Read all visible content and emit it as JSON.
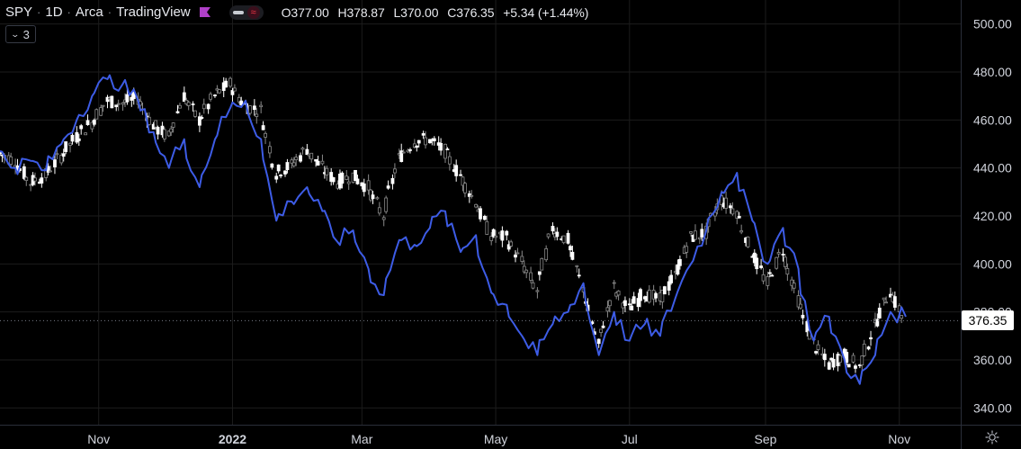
{
  "legend": {
    "symbol": "SPY",
    "interval": "1D",
    "exchange": "Arca",
    "source": "TradingView",
    "open": "O377.00",
    "high": "H378.87",
    "low": "L370.00",
    "close": "C376.35",
    "change": "+5.34 (+1.44%)",
    "flag_color": "#b040c8",
    "flag_icon": "flag-icon"
  },
  "indicators_button": {
    "count": "3",
    "icon": "chevron-down-icon"
  },
  "last_price": "376.35",
  "colors": {
    "background": "#000000",
    "grid": "#1c1c1c",
    "candle_up": "#ffffff",
    "candle_down": "#8a8a8a",
    "compare_line": "#3d5ce6",
    "price_tag_bg": "#ffffff",
    "axis_text": "#d1d4dc"
  },
  "chart_data": {
    "type": "line",
    "ylim": [
      333,
      510
    ],
    "y_ticks": [
      "340.00",
      "360.00",
      "380.00",
      "400.00",
      "420.00",
      "440.00",
      "460.00",
      "480.00",
      "500.00"
    ],
    "y_tick_values": [
      340,
      360,
      380,
      400,
      420,
      440,
      460,
      480,
      500
    ],
    "x_ticks": [
      "Nov",
      "2022",
      "Mar",
      "May",
      "Jul",
      "Sep",
      "Nov"
    ],
    "x_tick_dates": [
      "2021-11-01",
      "2022-01-01",
      "2022-03-01",
      "2022-05-01",
      "2022-07-01",
      "2022-09-01",
      "2022-11-01"
    ],
    "x_range": [
      "2021-09-17",
      "2022-11-29"
    ],
    "grid": true,
    "series": [
      {
        "kind": "candlestick",
        "close_points": [
          [
            "2021-09-17",
            446
          ],
          [
            "2021-09-24",
            443
          ],
          [
            "2021-10-01",
            434
          ],
          [
            "2021-10-08",
            437
          ],
          [
            "2021-10-15",
            445
          ],
          [
            "2021-10-22",
            453
          ],
          [
            "2021-10-29",
            459
          ],
          [
            "2021-11-05",
            468
          ],
          [
            "2021-11-12",
            467
          ],
          [
            "2021-11-19",
            469
          ],
          [
            "2021-11-26",
            458
          ],
          [
            "2021-12-03",
            453
          ],
          [
            "2021-12-10",
            470
          ],
          [
            "2021-12-17",
            460
          ],
          [
            "2021-12-24",
            470
          ],
          [
            "2021-12-31",
            475
          ],
          [
            "2022-01-07",
            466
          ],
          [
            "2022-01-14",
            464
          ],
          [
            "2022-01-21",
            438
          ],
          [
            "2022-01-28",
            441
          ],
          [
            "2022-02-04",
            448
          ],
          [
            "2022-02-11",
            440
          ],
          [
            "2022-02-18",
            434
          ],
          [
            "2022-02-25",
            437
          ],
          [
            "2022-03-04",
            432
          ],
          [
            "2022-03-11",
            420
          ],
          [
            "2022-03-18",
            444
          ],
          [
            "2022-03-25",
            451
          ],
          [
            "2022-04-01",
            452
          ],
          [
            "2022-04-08",
            447
          ],
          [
            "2022-04-15",
            437
          ],
          [
            "2022-04-22",
            426
          ],
          [
            "2022-04-29",
            412
          ],
          [
            "2022-05-06",
            411
          ],
          [
            "2022-05-13",
            401
          ],
          [
            "2022-05-20",
            389
          ],
          [
            "2022-05-27",
            415
          ],
          [
            "2022-06-03",
            410
          ],
          [
            "2022-06-10",
            390
          ],
          [
            "2022-06-17",
            366
          ],
          [
            "2022-06-24",
            390
          ],
          [
            "2022-07-01",
            381
          ],
          [
            "2022-07-08",
            388
          ],
          [
            "2022-07-15",
            385
          ],
          [
            "2022-07-22",
            395
          ],
          [
            "2022-07-29",
            411
          ],
          [
            "2022-08-05",
            413
          ],
          [
            "2022-08-12",
            427
          ],
          [
            "2022-08-19",
            422
          ],
          [
            "2022-08-26",
            405
          ],
          [
            "2022-09-02",
            392
          ],
          [
            "2022-09-09",
            406
          ],
          [
            "2022-09-16",
            385
          ],
          [
            "2022-09-23",
            367
          ],
          [
            "2022-09-30",
            358
          ],
          [
            "2022-10-07",
            362
          ],
          [
            "2022-10-14",
            357
          ],
          [
            "2022-10-21",
            374
          ],
          [
            "2022-10-28",
            389
          ],
          [
            "2022-11-04",
            376
          ]
        ]
      },
      {
        "kind": "line",
        "points": [
          [
            "2021-09-17",
            447
          ],
          [
            "2021-09-24",
            440
          ],
          [
            "2021-10-01",
            443
          ],
          [
            "2021-10-08",
            439
          ],
          [
            "2021-10-15",
            450
          ],
          [
            "2021-10-22",
            460
          ],
          [
            "2021-10-29",
            470
          ],
          [
            "2021-11-05",
            477
          ],
          [
            "2021-11-12",
            475
          ],
          [
            "2021-11-19",
            468
          ],
          [
            "2021-11-26",
            455
          ],
          [
            "2021-12-03",
            440
          ],
          [
            "2021-12-10",
            452
          ],
          [
            "2021-12-17",
            432
          ],
          [
            "2021-12-24",
            452
          ],
          [
            "2021-12-31",
            465
          ],
          [
            "2022-01-07",
            468
          ],
          [
            "2022-01-14",
            452
          ],
          [
            "2022-01-21",
            418
          ],
          [
            "2022-01-28",
            426
          ],
          [
            "2022-02-04",
            432
          ],
          [
            "2022-02-11",
            422
          ],
          [
            "2022-02-18",
            409
          ],
          [
            "2022-02-25",
            414
          ],
          [
            "2022-03-04",
            398
          ],
          [
            "2022-03-11",
            387
          ],
          [
            "2022-03-18",
            410
          ],
          [
            "2022-03-25",
            408
          ],
          [
            "2022-04-01",
            415
          ],
          [
            "2022-04-08",
            422
          ],
          [
            "2022-04-15",
            405
          ],
          [
            "2022-04-22",
            412
          ],
          [
            "2022-04-29",
            388
          ],
          [
            "2022-05-06",
            383
          ],
          [
            "2022-05-13",
            370
          ],
          [
            "2022-05-20",
            362
          ],
          [
            "2022-05-27",
            375
          ],
          [
            "2022-06-03",
            380
          ],
          [
            "2022-06-10",
            392
          ],
          [
            "2022-06-17",
            362
          ],
          [
            "2022-06-24",
            380
          ],
          [
            "2022-07-01",
            368
          ],
          [
            "2022-07-08",
            375
          ],
          [
            "2022-07-15",
            370
          ],
          [
            "2022-07-22",
            386
          ],
          [
            "2022-07-29",
            400
          ],
          [
            "2022-08-05",
            414
          ],
          [
            "2022-08-12",
            430
          ],
          [
            "2022-08-19",
            438
          ],
          [
            "2022-08-26",
            418
          ],
          [
            "2022-09-02",
            400
          ],
          [
            "2022-09-09",
            415
          ],
          [
            "2022-09-16",
            398
          ],
          [
            "2022-09-23",
            368
          ],
          [
            "2022-09-30",
            378
          ],
          [
            "2022-10-07",
            360
          ],
          [
            "2022-10-14",
            350
          ],
          [
            "2022-10-21",
            362
          ],
          [
            "2022-10-28",
            380
          ],
          [
            "2022-11-04",
            378
          ]
        ]
      }
    ]
  }
}
